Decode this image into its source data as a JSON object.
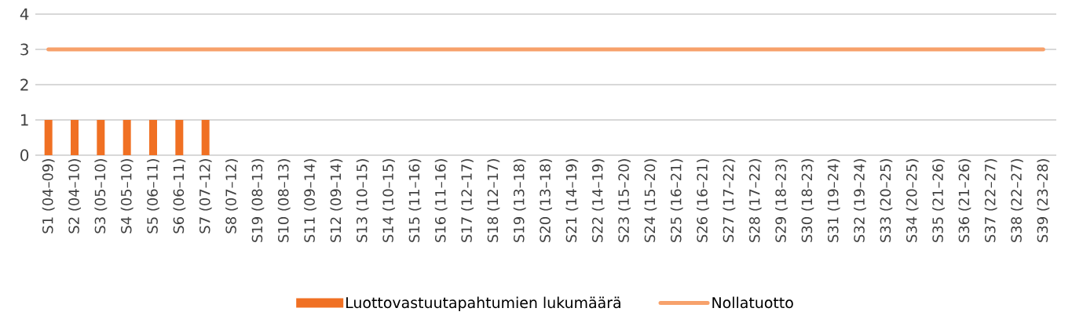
{
  "chart_data": {
    "type": "bar",
    "categories": [
      "S1 (04–09)",
      "S2 (04–10)",
      "S3 (05–10)",
      "S4 (05–10)",
      "S5 (06–11)",
      "S6 (06–11)",
      "S7 (07–12)",
      "S8 (07–12)",
      "S19 (08–13)",
      "S10 (08–13)",
      "S11 (09–14)",
      "S12 (09–14)",
      "S13 (10–15)",
      "S14 (10–15)",
      "S15 (11–16)",
      "S16 (11–16)",
      "S17 (12–17)",
      "S18 (12–17)",
      "S19 (13–18)",
      "S20 (13–18)",
      "S21 (14–19)",
      "S22 (14–19)",
      "S23 (15–20)",
      "S24 (15–20)",
      "S25 (16–21)",
      "S26 (16–21)",
      "S27 (17–22)",
      "S28 (17–22)",
      "S29 (18–23)",
      "S30 (18–23)",
      "S31 (19–24)",
      "S32 (19–24)",
      "S33 (20–25)",
      "S34 (20–25)",
      "S35 (21–26)",
      "S36 (21–26)",
      "S37 (22–27)",
      "S38 (22–27)",
      "S39 (23–28)"
    ],
    "series": [
      {
        "name": "Luottovastuutapahtumien lukumäärä",
        "color": "#f07023",
        "values": [
          1,
          1,
          1,
          1,
          1,
          1,
          1,
          0,
          0,
          0,
          0,
          0,
          0,
          0,
          0,
          0,
          0,
          0,
          0,
          0,
          0,
          0,
          0,
          0,
          0,
          0,
          0,
          0,
          0,
          0,
          0,
          0,
          0,
          0,
          0,
          0,
          0,
          0,
          0
        ]
      },
      {
        "name": "Nollatuotto",
        "type": "line",
        "color": "#f7a16b",
        "values": [
          3,
          3,
          3,
          3,
          3,
          3,
          3,
          3,
          3,
          3,
          3,
          3,
          3,
          3,
          3,
          3,
          3,
          3,
          3,
          3,
          3,
          3,
          3,
          3,
          3,
          3,
          3,
          3,
          3,
          3,
          3,
          3,
          3,
          3,
          3,
          3,
          3,
          3,
          3
        ]
      }
    ],
    "ylim": [
      0,
      4
    ],
    "yticks": [
      0,
      1,
      2,
      3,
      4
    ],
    "grid": "y",
    "legend": "bottom"
  }
}
